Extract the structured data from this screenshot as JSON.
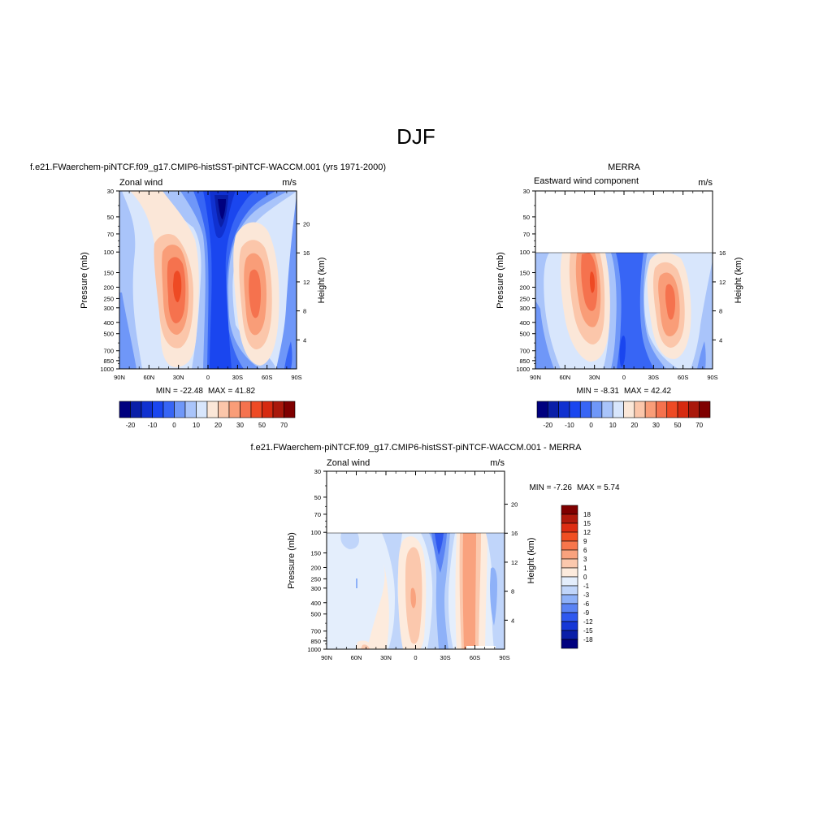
{
  "page": {
    "title": "DJF"
  },
  "lat_ticks": [
    "90N",
    "60N",
    "30N",
    "0",
    "30S",
    "60S",
    "90S"
  ],
  "pressure_ticks": [
    30,
    50,
    70,
    100,
    150,
    200,
    250,
    300,
    400,
    500,
    700,
    850,
    1000
  ],
  "chart_data": [
    {
      "type": "heatmap",
      "title": "f.e21.FWaerchem-piNTCF.f09_g17.CMIP6-histSST-piNTCF-WACCM.001 (yrs 1971-2000)",
      "subtitle_left": "Zonal wind",
      "subtitle_right": "m/s",
      "xlabel": "",
      "ylabel": "Pressure (mb)",
      "ylabel_right": "Height (km)",
      "x_range": [
        "90N",
        "90S"
      ],
      "ylim": [
        1000,
        30
      ],
      "y_scale": "log",
      "height_ticks": [
        4,
        8,
        12,
        16,
        20
      ],
      "min_label": "MIN = -22.48",
      "max_label": "MAX =  41.82",
      "min": -22.48,
      "max": 41.82,
      "colorbar": {
        "orientation": "horizontal",
        "levels": [
          -25,
          -20,
          -15,
          -10,
          -5,
          0,
          5,
          10,
          15,
          20,
          25,
          30,
          40,
          50,
          60,
          70
        ],
        "tick_labels": [
          "-20",
          "-10",
          "0",
          "10",
          "20",
          "30",
          "50",
          "70"
        ],
        "colors": [
          "#00007f",
          "#0a1fa8",
          "#1031d0",
          "#1a46ef",
          "#3765f5",
          "#6f97f8",
          "#a9c4fa",
          "#d8e6fc",
          "#fbe7d8",
          "#fbc6aa",
          "#f99d78",
          "#f5724e",
          "#ee4a24",
          "#d62a10",
          "#a9180b",
          "#7f0000"
        ]
      }
    },
    {
      "type": "heatmap",
      "title": "MERRA",
      "subtitle_left": "Eastward wind component",
      "subtitle_right": "m/s",
      "xlabel": "",
      "ylabel": "Pressure (mb)",
      "ylabel_right": "Height (km)",
      "x_range": [
        "90N",
        "90S"
      ],
      "ylim": [
        1000,
        30
      ],
      "y_scale": "log",
      "data_top_pressure": 100,
      "height_ticks": [
        4,
        8,
        12,
        16
      ],
      "min_label": "MIN =  -8.31",
      "max_label": "MAX =  42.42",
      "min": -8.31,
      "max": 42.42,
      "colorbar": {
        "orientation": "horizontal",
        "levels": [
          -25,
          -20,
          -15,
          -10,
          -5,
          0,
          5,
          10,
          15,
          20,
          25,
          30,
          40,
          50,
          60,
          70
        ],
        "tick_labels": [
          "-20",
          "-10",
          "0",
          "10",
          "20",
          "30",
          "50",
          "70"
        ],
        "colors": [
          "#00007f",
          "#0a1fa8",
          "#1031d0",
          "#1a46ef",
          "#3765f5",
          "#6f97f8",
          "#a9c4fa",
          "#d8e6fc",
          "#fbe7d8",
          "#fbc6aa",
          "#f99d78",
          "#f5724e",
          "#ee4a24",
          "#d62a10",
          "#a9180b",
          "#7f0000"
        ]
      }
    },
    {
      "type": "heatmap",
      "title": "f.e21.FWaerchem-piNTCF.f09_g17.CMIP6-histSST-piNTCF-WACCM.001 - MERRA",
      "subtitle_left": "Zonal wind",
      "subtitle_right": "m/s",
      "xlabel": "",
      "ylabel": "Pressure (mb)",
      "ylabel_right": "Height (km)",
      "x_range": [
        "90N",
        "90S"
      ],
      "ylim": [
        1000,
        30
      ],
      "y_scale": "log",
      "data_top_pressure": 100,
      "height_ticks": [
        4,
        8,
        12,
        16,
        20
      ],
      "min_label": "MIN =  -7.26",
      "max_label": "MAX =   5.74",
      "min": -7.26,
      "max": 5.74,
      "colorbar": {
        "orientation": "vertical",
        "levels": [
          18,
          15,
          12,
          9,
          6,
          3,
          1,
          0,
          -1,
          -3,
          -6,
          -9,
          -12,
          -15,
          -18
        ],
        "tick_labels": [
          "18",
          "15",
          "12",
          "9",
          "6",
          "3",
          "1",
          "0",
          "-1",
          "-3",
          "-6",
          "-9",
          "-12",
          "-15",
          "-18"
        ],
        "colors": [
          "#7f0000",
          "#b01a0c",
          "#dd2d12",
          "#f04f22",
          "#f7764c",
          "#f9a27e",
          "#fbc8ad",
          "#fdebdd",
          "#e4eefc",
          "#c0d5fa",
          "#8eb1f8",
          "#5a83f4",
          "#2f58ef",
          "#1537d6",
          "#0a1fa8",
          "#00007f"
        ]
      }
    }
  ]
}
